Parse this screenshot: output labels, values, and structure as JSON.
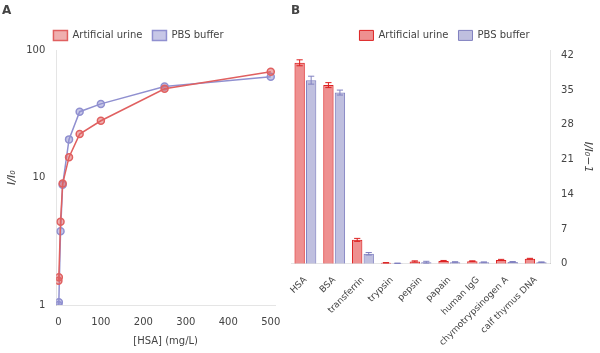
{
  "chart_data": [
    {
      "type": "line",
      "title": "A",
      "xlabel": "[HSA] (mg/L)",
      "ylabel": "I/I₀",
      "log": "y",
      "xlim": [
        -5,
        510
      ],
      "ylim": [
        1,
        100
      ],
      "xticks": [
        0,
        100,
        200,
        300,
        400,
        500
      ],
      "yticks": [
        1,
        10,
        100
      ],
      "grid": false,
      "legend": "top",
      "x": [
        0,
        1,
        5,
        10,
        25,
        50,
        100,
        250,
        500
      ],
      "series": [
        {
          "name": "Artificial urine",
          "color": "#e06060",
          "marker": "circle",
          "values": [
            1.55,
            1.65,
            4.5,
            9.0,
            14.5,
            22.0,
            28.0,
            50.0,
            68.0
          ]
        },
        {
          "name": "PBS buffer",
          "color": "#9090d0",
          "marker": "circle",
          "values": [
            1.0,
            1.05,
            3.8,
            8.8,
            20.0,
            33.0,
            38.0,
            52.0,
            62.0
          ]
        }
      ]
    },
    {
      "type": "bar",
      "title": "B",
      "ylabel": "I/I₀−1",
      "categories": [
        "HSA",
        "BSA",
        "transferrin",
        "trypsin",
        "pepsin",
        "papain",
        "human IgG",
        "chymotrypsinogen A",
        "calf thymus DNA"
      ],
      "ylim": [
        0,
        43
      ],
      "yticks": [
        0,
        7,
        14,
        21,
        28,
        35,
        42
      ],
      "grid": false,
      "legend": "top",
      "series": [
        {
          "name": "Artificial urine",
          "color": "#dd2222",
          "values": [
            40.5,
            36.0,
            4.8,
            0.18,
            0.45,
            0.55,
            0.5,
            0.75,
            1.0
          ],
          "errors": [
            0.6,
            0.5,
            0.3,
            0.04,
            0.12,
            0.1,
            0.08,
            0.12,
            0.08
          ]
        },
        {
          "name": "PBS buffer",
          "color": "#8080c0",
          "values": [
            37.0,
            34.5,
            2.0,
            0.08,
            0.3,
            0.3,
            0.28,
            0.35,
            0.3
          ],
          "errors": [
            0.8,
            0.5,
            0.25,
            0.04,
            0.18,
            0.1,
            0.08,
            0.08,
            0.06
          ]
        }
      ]
    }
  ]
}
